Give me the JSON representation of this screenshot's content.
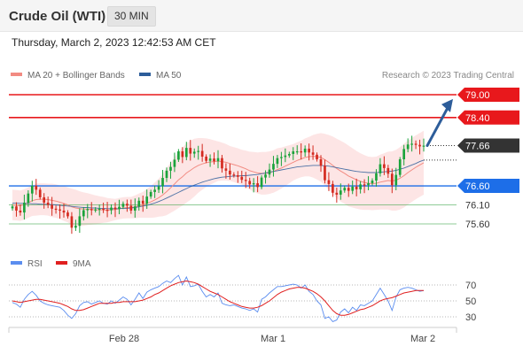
{
  "header": {
    "title": "Crude Oil (WTI)",
    "timeframe": "30 MIN"
  },
  "datetime": "Thursday, March 2, 2023 12:42:53 AM CET",
  "legend": {
    "items": [
      {
        "label": "MA 20 + Bollinger Bands",
        "color": "#f28b82"
      },
      {
        "label": "MA 50",
        "color": "#2d5d9a"
      }
    ],
    "credit": "Research © 2023 Trading Central"
  },
  "rsi_legend": {
    "items": [
      {
        "label": "RSI",
        "color": "#5b8def"
      },
      {
        "label": "9MA",
        "color": "#e02020"
      }
    ]
  },
  "colors": {
    "up": "#1aa33b",
    "down": "#d42a1f",
    "resistance": "#e8181c",
    "support_pivot": "#1d6ee8",
    "support": "#2a9d3a",
    "last": "#333333",
    "arrow": "#2d5d9a",
    "band": "#fcdcdc"
  },
  "chart_data": [
    {
      "type": "candlestick",
      "y_range": [
        75.3,
        79.3
      ],
      "x_ticks": [
        "Feb 28",
        "Mar 1",
        "Mar 2"
      ],
      "levels": [
        {
          "value": 79.0,
          "label": "79.00",
          "kind": "resistance"
        },
        {
          "value": 78.4,
          "label": "78.40",
          "kind": "resistance"
        },
        {
          "value": 77.66,
          "label": "77.66",
          "kind": "last"
        },
        {
          "value": 76.6,
          "label": "76.60",
          "kind": "pivot"
        },
        {
          "value": 76.1,
          "label": "76.10",
          "kind": "support"
        },
        {
          "value": 75.6,
          "label": "75.60",
          "kind": "support"
        }
      ],
      "close_series": [
        76.06,
        75.95,
        75.9,
        76.16,
        76.4,
        76.6,
        76.5,
        76.3,
        76.16,
        76.1,
        76.0,
        75.98,
        75.95,
        75.9,
        75.8,
        75.5,
        75.55,
        75.8,
        75.96,
        75.99,
        75.96,
        75.98,
        76.0,
        75.97,
        75.96,
        76.03,
        75.99,
        76.05,
        76.13,
        76.08,
        75.95,
        76.06,
        76.21,
        76.13,
        76.32,
        76.44,
        76.5,
        76.59,
        76.81,
        77.0,
        77.1,
        77.29,
        77.51,
        77.36,
        77.6,
        77.45,
        77.5,
        77.52,
        77.37,
        77.26,
        77.32,
        77.25,
        77.33,
        77.06,
        77.0,
        76.9,
        76.88,
        76.84,
        76.76,
        76.73,
        76.64,
        76.67,
        76.57,
        76.82,
        76.9,
        77.03,
        77.18,
        77.33,
        77.36,
        77.4,
        77.44,
        77.51,
        77.51,
        77.48,
        77.58,
        77.48,
        77.42,
        77.3,
        77.13,
        76.75,
        76.65,
        76.42,
        76.37,
        76.48,
        76.55,
        76.47,
        76.58,
        76.51,
        76.64,
        76.62,
        76.67,
        76.74,
        76.93,
        77.17,
        77.07,
        76.92,
        76.62,
        76.89,
        77.3,
        77.57,
        77.69,
        77.71,
        77.68,
        77.64,
        77.66
      ],
      "ma20_series": [
        76.1,
        76.09,
        76.08,
        76.11,
        76.16,
        76.21,
        76.24,
        76.25,
        76.25,
        76.24,
        76.22,
        76.2,
        76.17,
        76.14,
        76.1,
        76.05,
        76.02,
        76.0,
        75.99,
        75.99,
        75.98,
        75.97,
        75.97,
        75.97,
        75.96,
        75.97,
        75.98,
        76.0,
        76.02,
        76.03,
        76.03,
        76.05,
        76.08,
        76.1,
        76.14,
        76.18,
        76.23,
        76.29,
        76.36,
        76.45,
        76.55,
        76.65,
        76.76,
        76.84,
        76.94,
        77.01,
        77.08,
        77.14,
        77.18,
        77.21,
        77.23,
        77.24,
        77.25,
        77.24,
        77.22,
        77.19,
        77.16,
        77.13,
        77.09,
        77.05,
        77.0,
        76.97,
        76.94,
        76.93,
        76.93,
        76.95,
        76.98,
        77.03,
        77.07,
        77.12,
        77.17,
        77.22,
        77.27,
        77.31,
        77.35,
        77.37,
        77.38,
        77.37,
        77.35,
        77.29,
        77.22,
        77.14,
        77.06,
        76.99,
        76.93,
        76.86,
        76.81,
        76.76,
        76.72,
        76.69,
        76.67,
        76.66,
        76.67,
        76.7,
        76.72,
        76.74,
        76.73,
        76.75,
        76.8,
        76.87,
        76.95,
        77.02,
        77.09,
        77.15,
        77.21
      ],
      "ma20_band_halfwidth": [
        0.4,
        0.4,
        0.4,
        0.4,
        0.4,
        0.4,
        0.42,
        0.42,
        0.42,
        0.42,
        0.44,
        0.44,
        0.44,
        0.46,
        0.46,
        0.48,
        0.48,
        0.46,
        0.44,
        0.42,
        0.4,
        0.38,
        0.36,
        0.34,
        0.32,
        0.3,
        0.28,
        0.28,
        0.28,
        0.28,
        0.28,
        0.3,
        0.32,
        0.34,
        0.38,
        0.42,
        0.46,
        0.5,
        0.56,
        0.62,
        0.66,
        0.7,
        0.74,
        0.76,
        0.78,
        0.78,
        0.76,
        0.72,
        0.68,
        0.64,
        0.6,
        0.56,
        0.52,
        0.5,
        0.48,
        0.46,
        0.46,
        0.46,
        0.46,
        0.48,
        0.5,
        0.52,
        0.54,
        0.56,
        0.56,
        0.56,
        0.56,
        0.56,
        0.54,
        0.52,
        0.5,
        0.48,
        0.48,
        0.48,
        0.5,
        0.52,
        0.56,
        0.6,
        0.64,
        0.68,
        0.72,
        0.76,
        0.78,
        0.8,
        0.8,
        0.8,
        0.78,
        0.76,
        0.74,
        0.72,
        0.7,
        0.7,
        0.7,
        0.72,
        0.74,
        0.76,
        0.78,
        0.8,
        0.82,
        0.84,
        0.84,
        0.84,
        0.84,
        0.84,
        0.84
      ],
      "ma50_series": [
        76.15,
        76.15,
        76.14,
        76.14,
        76.14,
        76.13,
        76.13,
        76.12,
        76.12,
        76.11,
        76.11,
        76.1,
        76.09,
        76.08,
        76.07,
        76.06,
        76.05,
        76.04,
        76.03,
        76.03,
        76.02,
        76.02,
        76.01,
        76.01,
        76.0,
        76.0,
        76.0,
        76.0,
        76.01,
        76.01,
        76.02,
        76.03,
        76.05,
        76.07,
        76.09,
        76.12,
        76.15,
        76.19,
        76.23,
        76.28,
        76.33,
        76.38,
        76.43,
        76.48,
        76.53,
        76.58,
        76.62,
        76.66,
        76.7,
        76.73,
        76.76,
        76.79,
        76.81,
        76.83,
        76.84,
        76.85,
        76.86,
        76.86,
        76.87,
        76.87,
        76.88,
        76.89,
        76.9,
        76.92,
        76.94,
        76.96,
        76.98,
        77.0,
        77.02,
        77.04,
        77.06,
        77.08,
        77.1,
        77.11,
        77.12,
        77.13,
        77.14,
        77.14,
        77.14,
        77.13,
        77.12,
        77.1,
        77.08,
        77.06,
        77.04,
        77.02,
        77.0,
        76.98,
        76.97,
        76.96,
        76.95,
        76.95,
        76.95,
        76.96,
        76.97,
        76.98,
        76.99,
        77.01,
        77.04,
        77.07,
        77.11,
        77.15,
        77.19,
        77.24,
        77.28
      ],
      "forecast": {
        "from": 77.66,
        "to": 78.98
      }
    },
    {
      "type": "line",
      "title": "RSI",
      "y_ticks": [
        70,
        50,
        30
      ],
      "y_range": [
        20,
        80
      ],
      "rsi_series": [
        48,
        46,
        42,
        52,
        58,
        62,
        57,
        50,
        47,
        45,
        44,
        43,
        42,
        38,
        32,
        28,
        34,
        44,
        48,
        49,
        46,
        48,
        50,
        47,
        46,
        50,
        47,
        51,
        55,
        52,
        45,
        52,
        60,
        53,
        61,
        64,
        66,
        68,
        72,
        75,
        73,
        78,
        82,
        70,
        80,
        68,
        69,
        71,
        62,
        55,
        58,
        55,
        60,
        47,
        45,
        44,
        45,
        43,
        41,
        40,
        38,
        40,
        36,
        52,
        55,
        60,
        64,
        68,
        68,
        69,
        70,
        71,
        70,
        66,
        70,
        62,
        58,
        50,
        45,
        28,
        30,
        24,
        26,
        36,
        40,
        35,
        42,
        38,
        45,
        44,
        47,
        50,
        58,
        66,
        58,
        50,
        38,
        55,
        64,
        66,
        67,
        66,
        64,
        62,
        63
      ],
      "ma9_series": [
        50,
        49,
        48,
        49,
        50,
        51,
        52,
        52,
        51,
        50,
        49,
        48,
        47,
        45,
        43,
        40,
        38,
        38,
        39,
        41,
        43,
        45,
        47,
        47,
        47,
        47,
        48,
        48,
        49,
        49,
        49,
        49,
        50,
        51,
        53,
        55,
        58,
        60,
        63,
        66,
        69,
        71,
        73,
        74,
        75,
        74,
        73,
        71,
        68,
        65,
        62,
        60,
        58,
        55,
        52,
        49,
        47,
        45,
        43,
        42,
        41,
        41,
        42,
        44,
        47,
        50,
        54,
        58,
        61,
        63,
        65,
        66,
        67,
        67,
        66,
        64,
        62,
        59,
        55,
        50,
        44,
        38,
        34,
        32,
        32,
        33,
        35,
        37,
        39,
        40,
        42,
        44,
        47,
        50,
        52,
        53,
        54,
        56,
        58,
        60,
        61,
        62,
        63,
        63,
        63
      ]
    }
  ]
}
